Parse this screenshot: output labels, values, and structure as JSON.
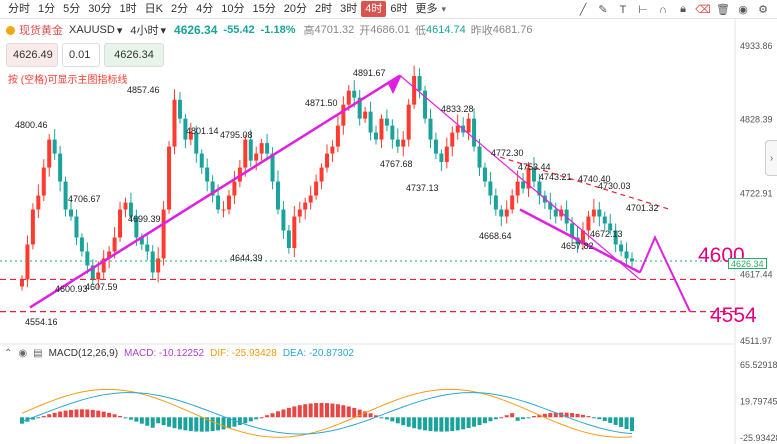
{
  "toolbar": {
    "timeframes": [
      "分时",
      "1分",
      "5分",
      "30分",
      "1时",
      "日K",
      "2分",
      "4分",
      "10分",
      "15分",
      "20分",
      "2时",
      "3时",
      "4时",
      "6时",
      "更多"
    ],
    "active": "4时"
  },
  "info": {
    "name": "现货黄金",
    "symbol": "XAUUSD",
    "period": "4小时",
    "price": "4626.34",
    "change": "-55.42",
    "change_pct": "-1.18%",
    "high_label": "高",
    "high": "4701.32",
    "open_label": "开",
    "open": "4686.01",
    "low_label": "低",
    "low": "4614.74",
    "prev_label": "昨收",
    "prev": "4681.76"
  },
  "trade": {
    "sell": "4626.49",
    "qty": "0.01",
    "buy": "4626.34"
  },
  "hint": "按 (空格)可显示主图指标线",
  "axis": {
    "price_ticks": [
      "4933.86",
      "4828.39",
      "4722.91",
      "4511.97"
    ],
    "macd_ticks": [
      "65.52918",
      "19.79745",
      "-25.93428"
    ],
    "price_tag": "4626.34",
    "price_tag2": "4617.44"
  },
  "annotations": {
    "level_a": "4600",
    "level_b": "4554"
  },
  "price_labels": [
    "4800.46",
    "4857.46",
    "4706.67",
    "4699.39",
    "4801.14",
    "4795.08",
    "4644.39",
    "4871.50",
    "4891.67",
    "4767.68",
    "4833.28",
    "4737.13",
    "4772.30",
    "4753.44",
    "4743.21",
    "4740.40",
    "4730.03",
    "4701.32",
    "4668.64",
    "4657.82",
    "4672.13",
    "4600.93",
    "4607.59",
    "4554.16"
  ],
  "macd": {
    "title": "MACD(12,26,9)",
    "macd_label": "MACD: -10.12252",
    "dif_label": "DIF: -25.93428",
    "dea_label": "DEA: -20.87302"
  },
  "colors": {
    "accent": "#e4007f",
    "up": "#ff3b30",
    "down": "#1aa39a",
    "level": "#e8203a"
  }
}
